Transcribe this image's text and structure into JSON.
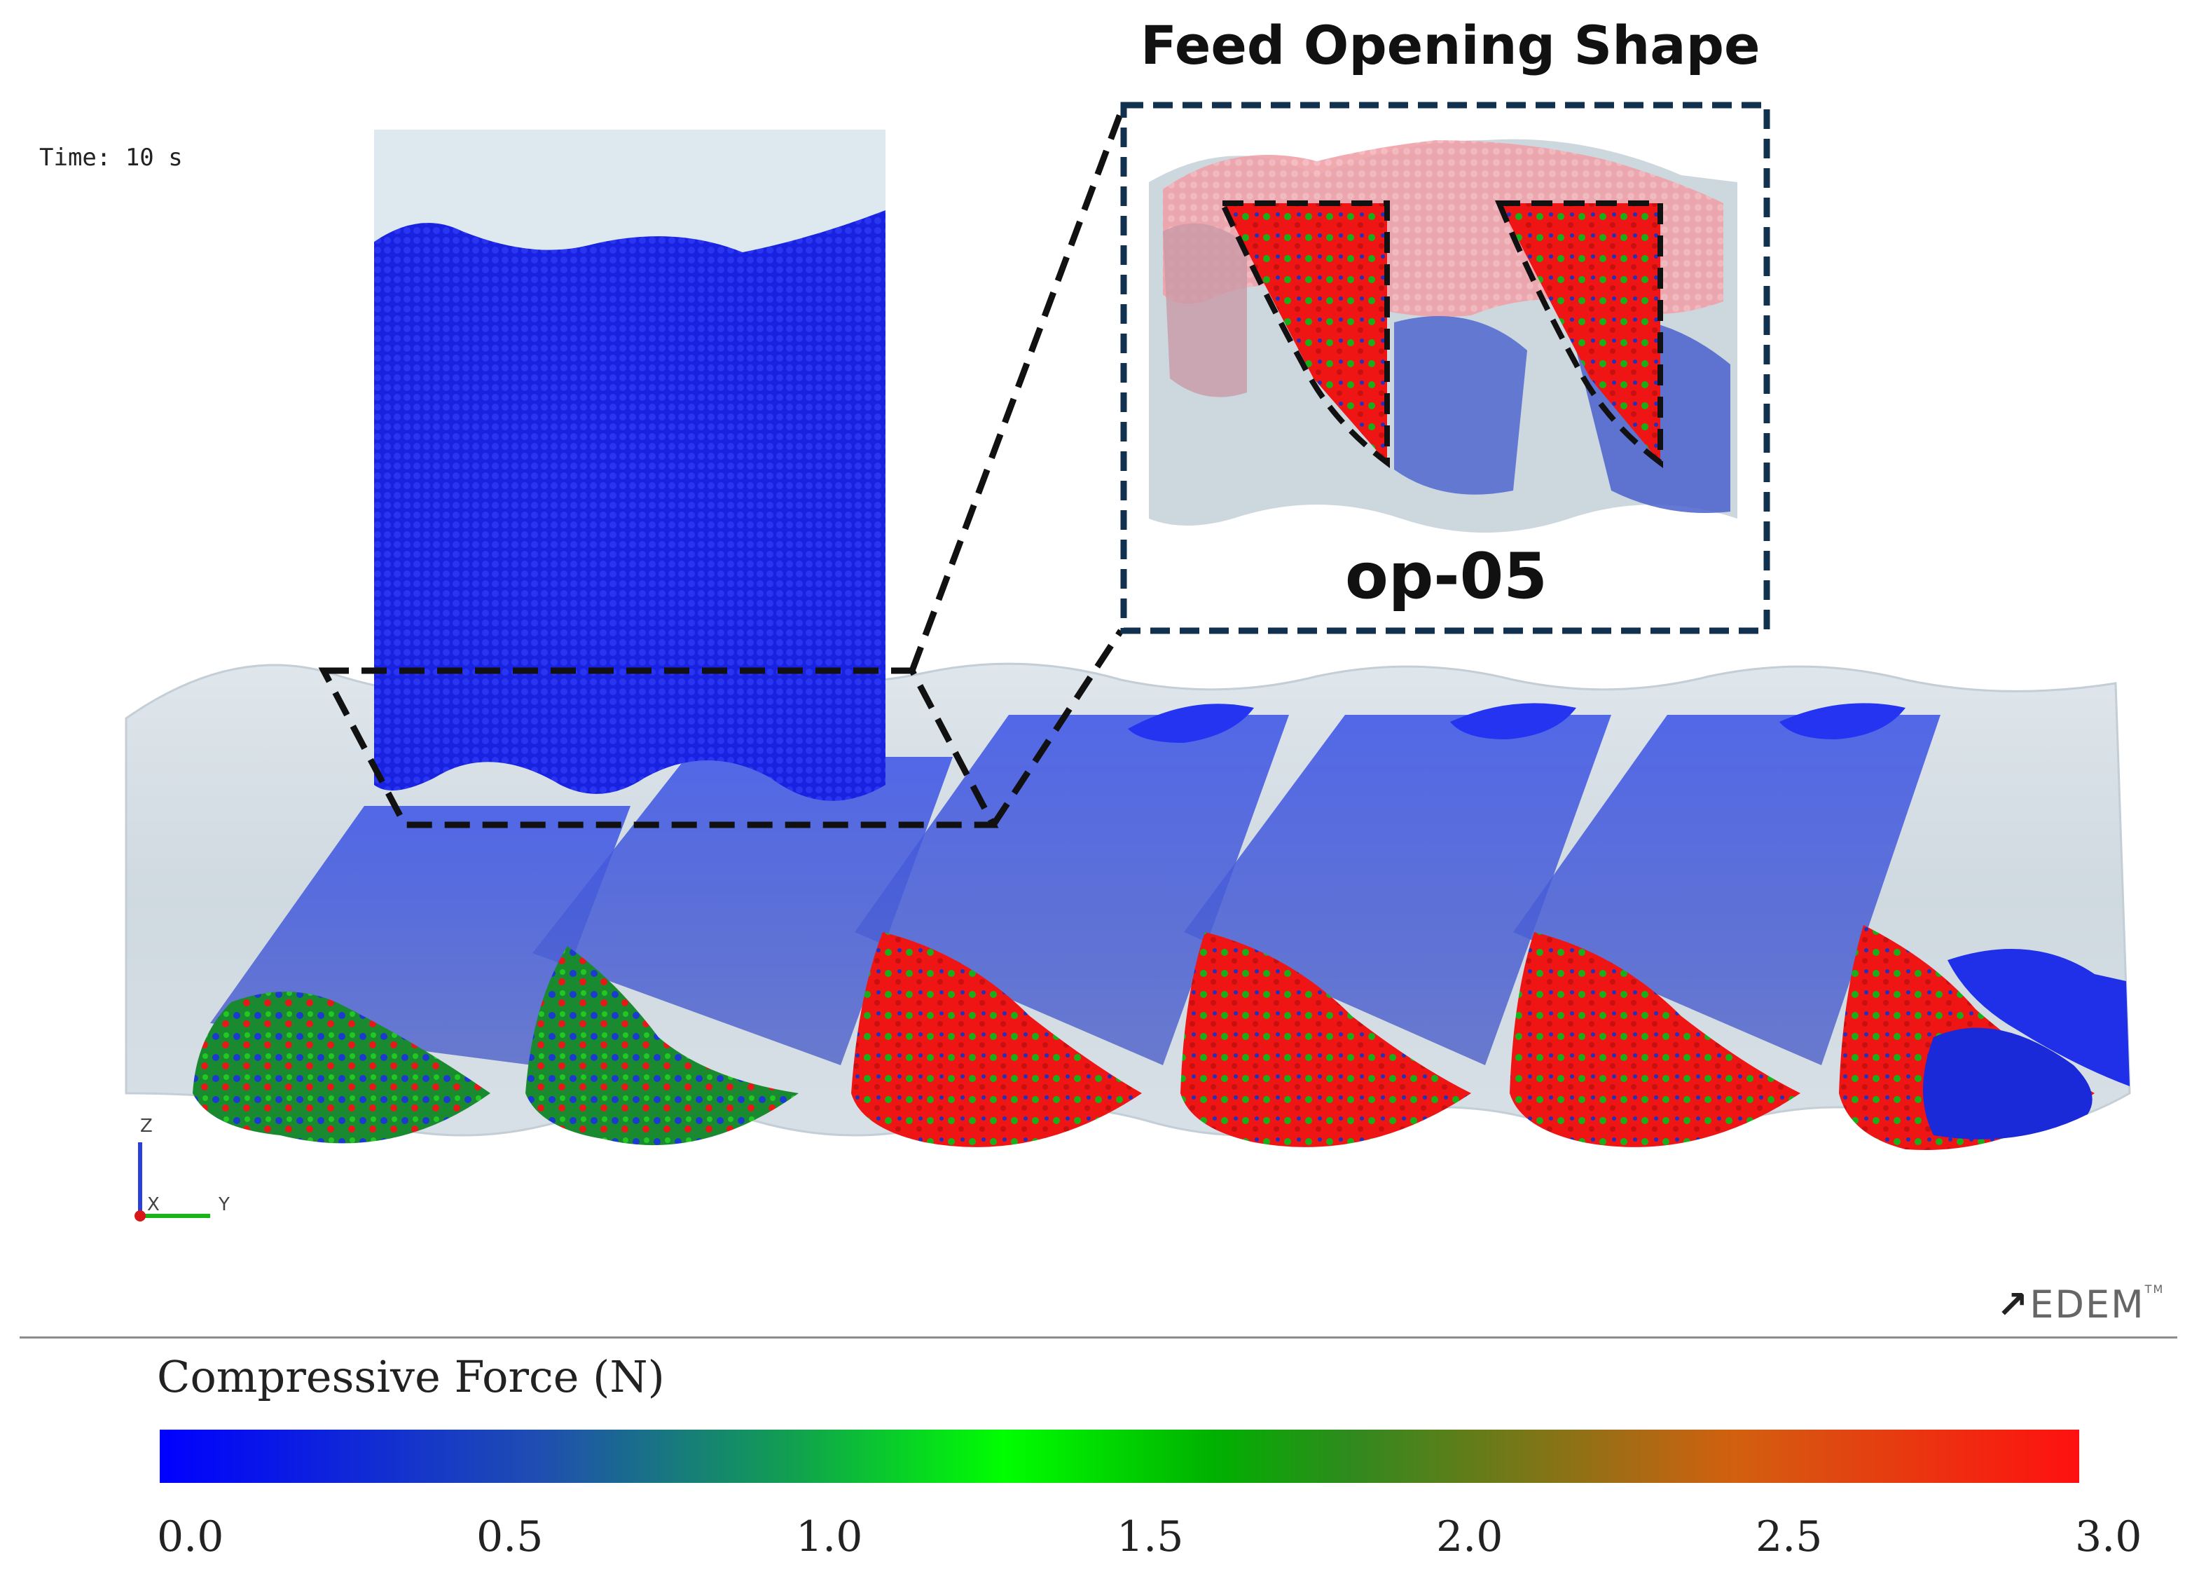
{
  "figure": {
    "title": "Feed Opening Shape",
    "inset_label": "op-05",
    "time_label": "Time: 10 s",
    "logo_text": "EDEM",
    "axes": {
      "z": "Z",
      "x": "X",
      "y": "Y"
    }
  },
  "legend": {
    "title": "Compressive Force (N)",
    "ticks": [
      "0.0",
      "0.5",
      "1.0",
      "1.5",
      "2.0",
      "2.5",
      "3.0"
    ],
    "colors": [
      "#0000ff",
      "#1f4fb0",
      "#00ff00",
      "#2f8a1e",
      "#ff1010"
    ]
  }
}
